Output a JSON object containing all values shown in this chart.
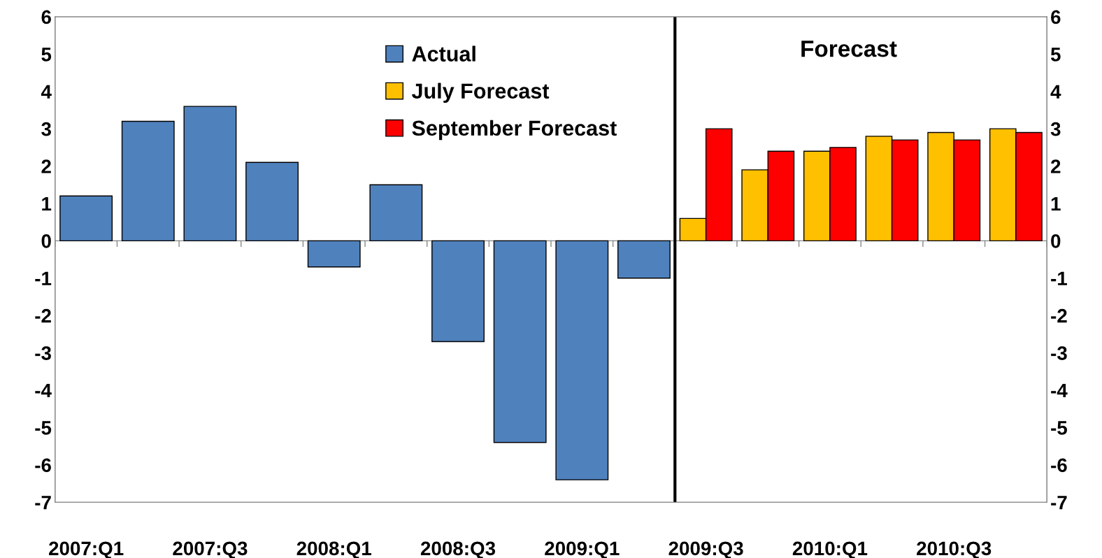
{
  "chart_data": {
    "type": "bar",
    "categories": [
      "2007:Q1",
      null,
      "2007:Q3",
      null,
      "2008:Q1",
      null,
      "2008:Q3",
      null,
      "2009:Q1",
      null,
      "2009:Q3",
      null,
      "2010:Q1",
      null,
      "2010:Q3",
      null
    ],
    "series": [
      {
        "name": "Actual",
        "color": "#4f81bd",
        "values": [
          1.2,
          3.2,
          3.6,
          2.1,
          -0.7,
          1.5,
          -2.7,
          -5.4,
          -6.4,
          -1.0,
          null,
          null,
          null,
          null,
          null,
          null
        ]
      },
      {
        "name": "July Forecast",
        "color": "#ffc000",
        "values": [
          null,
          null,
          null,
          null,
          null,
          null,
          null,
          null,
          null,
          null,
          0.6,
          1.9,
          2.4,
          2.8,
          2.9,
          3.0
        ]
      },
      {
        "name": "September Forecast",
        "color": "#ff0000",
        "values": [
          null,
          null,
          null,
          null,
          null,
          null,
          null,
          null,
          null,
          null,
          3.0,
          2.4,
          2.5,
          2.7,
          2.7,
          2.9
        ]
      }
    ],
    "ylim": [
      -7,
      6
    ],
    "yticks": [
      -7,
      -6,
      -5,
      -4,
      -3,
      -2,
      -1,
      0,
      1,
      2,
      3,
      4,
      5,
      6
    ],
    "y2lim": [
      -7,
      6
    ],
    "y2ticks": [
      -7,
      -6,
      -5,
      -4,
      -3,
      -2,
      -1,
      0,
      1,
      2,
      3,
      4,
      5,
      6
    ],
    "annotations": [
      "Forecast"
    ],
    "legend": "top",
    "grid": false
  }
}
